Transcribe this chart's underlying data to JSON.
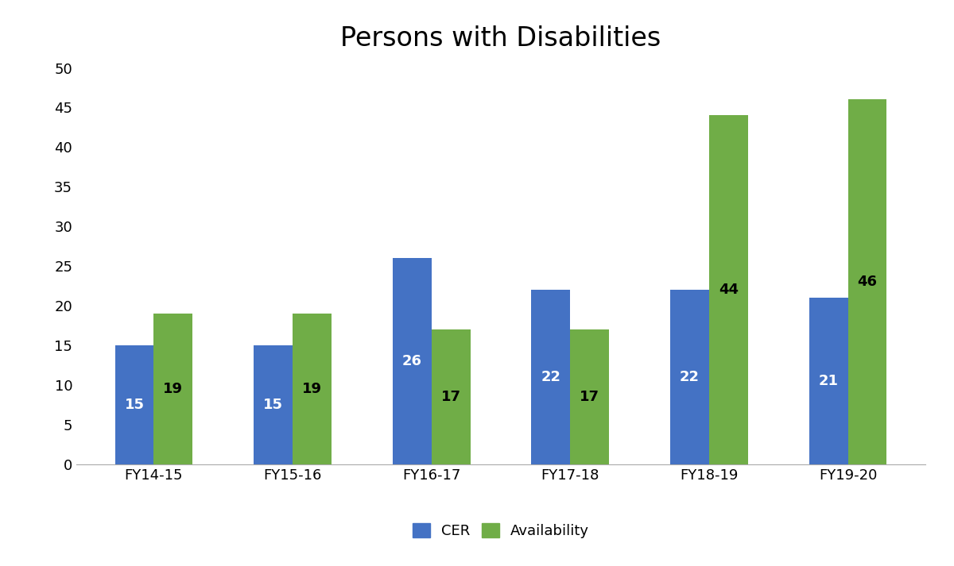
{
  "title": "Persons with Disabilities",
  "categories": [
    "FY14-15",
    "FY15-16",
    "FY16-17",
    "FY17-18",
    "FY18-19",
    "FY19-20"
  ],
  "cer_values": [
    15,
    15,
    26,
    22,
    22,
    21
  ],
  "availability_values": [
    19,
    19,
    17,
    17,
    44,
    46
  ],
  "cer_color": "#4472C4",
  "availability_color": "#70AD47",
  "cer_label": "CER",
  "availability_label": "Availability",
  "ylim": [
    0,
    50
  ],
  "yticks": [
    0,
    5,
    10,
    15,
    20,
    25,
    30,
    35,
    40,
    45,
    50
  ],
  "bar_width": 0.28,
  "title_fontsize": 24,
  "tick_fontsize": 13,
  "legend_fontsize": 13,
  "label_fontsize": 13,
  "background_color": "#ffffff"
}
